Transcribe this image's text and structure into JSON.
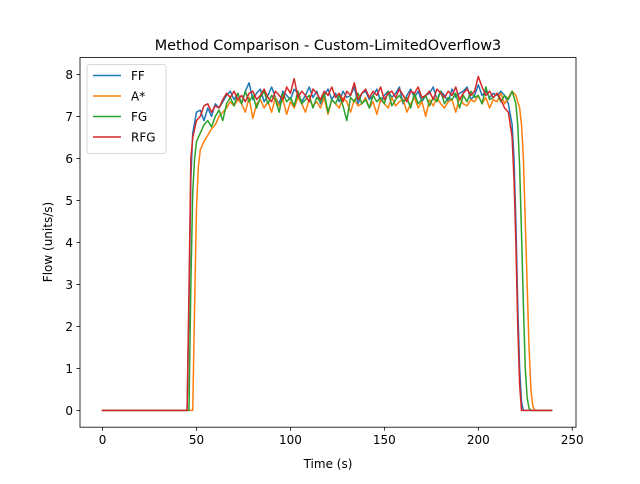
{
  "chart_data": {
    "type": "line",
    "title": "Method Comparison - Custom-LimitedOverflow3",
    "xlabel": "Time (s)",
    "ylabel": "Flow (units/s)",
    "xlim": [
      -12,
      252
    ],
    "ylim": [
      -0.4,
      8.4
    ],
    "xticks": [
      0,
      50,
      100,
      150,
      200,
      250
    ],
    "yticks": [
      0,
      1,
      2,
      3,
      4,
      5,
      6,
      7,
      8
    ],
    "legend_position": "top-left",
    "grid": false,
    "series": [
      {
        "name": "FF",
        "color": "#1f77b4",
        "x": [
          0,
          45,
          46,
          47,
          48,
          50,
          52,
          54,
          56,
          58,
          60,
          62,
          64,
          66,
          68,
          70,
          72,
          74,
          76,
          78,
          80,
          82,
          84,
          86,
          88,
          90,
          92,
          94,
          96,
          98,
          100,
          102,
          104,
          106,
          108,
          110,
          112,
          114,
          116,
          118,
          120,
          122,
          124,
          126,
          128,
          130,
          132,
          134,
          136,
          138,
          140,
          142,
          144,
          146,
          148,
          150,
          152,
          154,
          156,
          158,
          160,
          162,
          164,
          166,
          168,
          170,
          172,
          174,
          176,
          178,
          180,
          182,
          184,
          186,
          188,
          190,
          192,
          194,
          196,
          198,
          200,
          202,
          204,
          206,
          208,
          210,
          212,
          214,
          216,
          218,
          219,
          220,
          221,
          222,
          223,
          224,
          239
        ],
        "y": [
          0,
          0,
          2.5,
          5.5,
          6.6,
          7.1,
          7.15,
          6.9,
          7.2,
          7.0,
          7.3,
          7.2,
          7.35,
          7.5,
          7.6,
          7.4,
          7.55,
          7.3,
          7.6,
          7.8,
          7.4,
          7.55,
          7.65,
          7.35,
          7.5,
          7.7,
          7.45,
          7.3,
          7.6,
          7.5,
          7.4,
          7.65,
          7.55,
          7.35,
          7.5,
          7.7,
          7.45,
          7.6,
          7.3,
          7.5,
          7.65,
          7.4,
          7.55,
          7.35,
          7.6,
          7.45,
          7.5,
          7.7,
          7.3,
          7.55,
          7.6,
          7.4,
          7.5,
          7.65,
          7.35,
          7.5,
          7.6,
          7.45,
          7.55,
          7.7,
          7.3,
          7.5,
          7.65,
          7.45,
          7.6,
          7.35,
          7.5,
          7.55,
          7.7,
          7.4,
          7.6,
          7.5,
          7.35,
          7.65,
          7.45,
          7.55,
          7.6,
          7.7,
          7.4,
          7.5,
          7.75,
          7.5,
          7.6,
          7.45,
          7.55,
          7.5,
          7.6,
          7.5,
          7.3,
          6.8,
          6.0,
          4.5,
          2.5,
          1.0,
          0.2,
          0,
          0
        ]
      },
      {
        "name": "A*",
        "color": "#ff7f0e",
        "x": [
          0,
          48,
          49,
          50,
          51,
          52,
          54,
          56,
          58,
          60,
          62,
          64,
          66,
          68,
          70,
          72,
          74,
          76,
          78,
          80,
          82,
          84,
          86,
          88,
          90,
          92,
          94,
          96,
          98,
          100,
          102,
          104,
          106,
          108,
          110,
          112,
          114,
          116,
          118,
          120,
          122,
          124,
          126,
          128,
          130,
          132,
          134,
          136,
          138,
          140,
          142,
          144,
          146,
          148,
          150,
          152,
          154,
          156,
          158,
          160,
          162,
          164,
          166,
          168,
          170,
          172,
          174,
          176,
          178,
          180,
          182,
          184,
          186,
          188,
          190,
          192,
          194,
          196,
          198,
          200,
          202,
          204,
          206,
          208,
          210,
          212,
          214,
          216,
          218,
          220,
          222,
          223,
          224,
          225,
          226,
          227,
          228,
          229,
          230,
          239
        ],
        "y": [
          0,
          0,
          2.5,
          4.8,
          5.8,
          6.2,
          6.4,
          6.55,
          6.7,
          6.8,
          7.0,
          7.1,
          7.2,
          7.35,
          7.25,
          7.4,
          7.3,
          7.1,
          7.45,
          6.95,
          7.3,
          7.4,
          7.2,
          7.35,
          7.1,
          7.45,
          7.25,
          7.4,
          7.05,
          7.35,
          7.2,
          7.45,
          7.3,
          7.1,
          7.4,
          7.25,
          7.35,
          7.2,
          7.45,
          7.05,
          7.4,
          7.3,
          7.2,
          7.45,
          7.35,
          7.1,
          7.4,
          7.25,
          7.3,
          7.45,
          7.2,
          7.35,
          7.05,
          7.4,
          7.3,
          7.2,
          7.45,
          7.25,
          7.35,
          7.4,
          7.1,
          7.3,
          7.45,
          7.2,
          7.35,
          7.0,
          7.4,
          7.25,
          7.45,
          7.3,
          7.2,
          7.35,
          7.4,
          7.1,
          7.45,
          7.3,
          7.25,
          7.4,
          7.35,
          7.5,
          7.3,
          7.45,
          7.2,
          7.4,
          7.35,
          7.55,
          7.3,
          7.45,
          7.6,
          7.5,
          7.2,
          6.8,
          6.0,
          4.5,
          3.0,
          1.5,
          0.5,
          0.1,
          0,
          0
        ]
      },
      {
        "name": "FG",
        "color": "#2ca02c",
        "x": [
          0,
          46,
          47,
          48,
          49,
          50,
          52,
          54,
          56,
          58,
          60,
          62,
          64,
          66,
          68,
          70,
          72,
          74,
          76,
          78,
          80,
          82,
          84,
          86,
          88,
          90,
          92,
          94,
          96,
          98,
          100,
          102,
          104,
          106,
          108,
          110,
          112,
          114,
          116,
          118,
          120,
          122,
          124,
          126,
          128,
          130,
          132,
          134,
          136,
          138,
          140,
          142,
          144,
          146,
          148,
          150,
          152,
          154,
          156,
          158,
          160,
          162,
          164,
          166,
          168,
          170,
          172,
          174,
          176,
          178,
          180,
          182,
          184,
          186,
          188,
          190,
          192,
          194,
          196,
          198,
          200,
          202,
          204,
          206,
          208,
          210,
          212,
          214,
          216,
          218,
          219,
          220,
          221,
          222,
          223,
          224,
          225,
          226,
          227,
          228,
          239
        ],
        "y": [
          0,
          0,
          3.0,
          5.2,
          6.0,
          6.4,
          6.6,
          6.8,
          6.9,
          6.75,
          7.0,
          7.15,
          6.9,
          7.3,
          7.45,
          7.25,
          7.55,
          7.3,
          7.6,
          7.35,
          7.5,
          7.2,
          7.45,
          7.6,
          7.3,
          7.5,
          7.4,
          7.1,
          7.55,
          7.35,
          7.45,
          7.25,
          7.6,
          7.3,
          7.4,
          7.5,
          7.2,
          7.45,
          7.35,
          7.55,
          7.1,
          7.4,
          7.3,
          7.5,
          7.25,
          6.9,
          7.45,
          7.35,
          7.55,
          7.3,
          7.4,
          7.2,
          7.5,
          7.35,
          7.45,
          7.3,
          7.6,
          7.25,
          7.4,
          7.5,
          7.35,
          7.45,
          7.2,
          7.55,
          7.3,
          7.4,
          7.5,
          7.25,
          7.45,
          7.35,
          7.6,
          7.3,
          7.45,
          7.4,
          7.55,
          7.2,
          7.5,
          7.35,
          7.6,
          7.45,
          7.5,
          7.3,
          7.7,
          7.4,
          7.45,
          7.55,
          7.35,
          7.5,
          7.4,
          7.6,
          7.45,
          7.3,
          6.8,
          5.8,
          4.2,
          2.5,
          1.0,
          0.3,
          0.05,
          0,
          0
        ]
      },
      {
        "name": "RFG",
        "color": "#d62728",
        "x": [
          0,
          45,
          46,
          47,
          48,
          50,
          52,
          54,
          56,
          58,
          60,
          62,
          64,
          66,
          68,
          70,
          72,
          74,
          76,
          78,
          80,
          82,
          84,
          86,
          88,
          90,
          92,
          94,
          96,
          98,
          100,
          102,
          104,
          106,
          108,
          110,
          112,
          114,
          116,
          118,
          120,
          122,
          124,
          126,
          128,
          130,
          132,
          134,
          136,
          138,
          140,
          142,
          144,
          146,
          148,
          150,
          152,
          154,
          156,
          158,
          160,
          162,
          164,
          166,
          168,
          170,
          172,
          174,
          176,
          178,
          180,
          182,
          184,
          186,
          188,
          190,
          192,
          194,
          196,
          198,
          200,
          202,
          204,
          206,
          208,
          210,
          212,
          214,
          216,
          218,
          219,
          220,
          221,
          222,
          223,
          239
        ],
        "y": [
          0,
          0,
          2.8,
          6.0,
          6.5,
          6.9,
          7.0,
          7.25,
          7.3,
          7.1,
          7.25,
          7.2,
          7.4,
          7.55,
          7.45,
          7.6,
          7.4,
          7.5,
          7.35,
          7.55,
          7.6,
          7.4,
          7.5,
          7.65,
          7.45,
          7.35,
          7.6,
          7.5,
          7.4,
          7.7,
          7.55,
          7.9,
          7.45,
          7.6,
          7.5,
          7.35,
          7.65,
          7.55,
          7.4,
          7.6,
          7.5,
          7.7,
          7.45,
          7.55,
          7.35,
          7.6,
          7.5,
          7.8,
          7.4,
          7.55,
          7.65,
          7.45,
          7.6,
          7.5,
          7.7,
          7.4,
          7.55,
          7.6,
          7.45,
          7.65,
          7.5,
          7.35,
          7.6,
          7.55,
          7.7,
          7.45,
          7.5,
          7.6,
          7.4,
          7.65,
          7.55,
          7.45,
          7.6,
          7.5,
          7.7,
          7.4,
          7.55,
          7.65,
          7.5,
          7.6,
          7.95,
          7.7,
          7.5,
          7.6,
          7.45,
          7.55,
          7.4,
          7.2,
          7.1,
          6.5,
          5.5,
          4.0,
          2.0,
          0.6,
          0,
          0
        ]
      }
    ]
  }
}
